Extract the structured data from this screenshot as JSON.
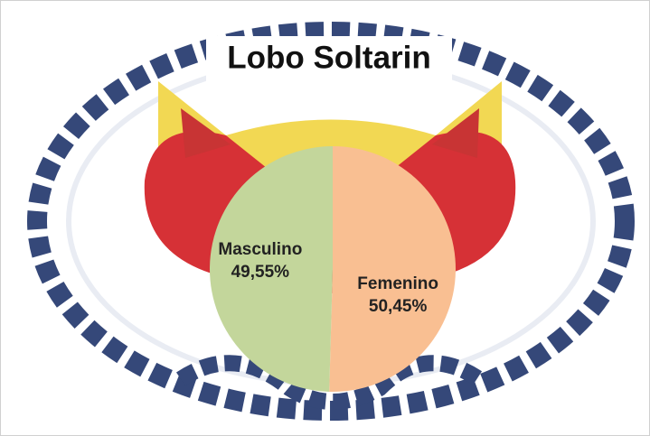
{
  "chart_data": {
    "type": "pie",
    "title": "Lobo Soltarin",
    "categories": [
      "Femenino",
      "Masculino"
    ],
    "values": [
      50.45,
      49.55
    ],
    "value_labels": [
      "50,45%",
      "49,55%"
    ],
    "colors": [
      "#f9bf92",
      "#c3d69b"
    ]
  }
}
